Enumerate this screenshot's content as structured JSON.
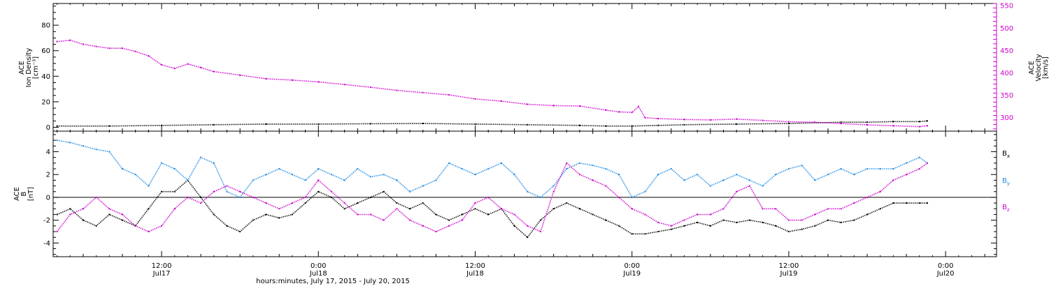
{
  "colors": {
    "black": "#000000",
    "magenta": "#cc00cc",
    "blue": "#1e8ce6",
    "axis": "#000000"
  },
  "xaxis": {
    "title": "hours:minutes, July 17, 2015 - July 20, 2015",
    "ticks": [
      {
        "time": "12:00",
        "date": "Jul17",
        "hours": 12
      },
      {
        "time": "0:00",
        "date": "Jul18",
        "hours": 24
      },
      {
        "time": "12:00",
        "date": "Jul18",
        "hours": 36
      },
      {
        "time": "0:00",
        "date": "Jul19",
        "hours": 48
      },
      {
        "time": "12:00",
        "date": "Jul19",
        "hours": 60
      },
      {
        "time": "0:00",
        "date": "Jul20",
        "hours": 72
      }
    ]
  },
  "chart_data": [
    {
      "type": "scatter",
      "panel": "plasma",
      "x_unit": "hours since 2015-07-17 00:00",
      "xlim": [
        3.7,
        75.9
      ],
      "left_axis": {
        "label_lines": [
          "ACE",
          "Ion Density",
          "[cm⁻³]"
        ],
        "ylim": [
          -3,
          97
        ],
        "ticks": [
          0,
          20,
          40,
          60,
          80
        ]
      },
      "right_axis": {
        "label_lines": [
          "ACE",
          "Velocity",
          "[km/s]"
        ],
        "ylim": [
          270,
          555
        ],
        "ticks": [
          300,
          350,
          400,
          450,
          500,
          550
        ]
      },
      "series": [
        {
          "axis": "left",
          "color": "#000000",
          "x": [
            4,
            8,
            12,
            16,
            20,
            24,
            28,
            32,
            36,
            40,
            44,
            46,
            48,
            50,
            52,
            56,
            60,
            64,
            66,
            68,
            70,
            70.6
          ],
          "values": [
            1,
            1,
            1.5,
            2,
            2.5,
            2.5,
            2.8,
            3,
            2.5,
            2,
            1.5,
            1,
            1,
            1.5,
            2,
            2.5,
            3,
            4,
            4,
            4.5,
            4.5,
            5
          ]
        },
        {
          "axis": "right",
          "color": "#cc00cc",
          "x": [
            4,
            5,
            6,
            7,
            8,
            9,
            10,
            11,
            12,
            13,
            14,
            15,
            16,
            18,
            20,
            22,
            24,
            26,
            28,
            30,
            32,
            34,
            36,
            38,
            40,
            42,
            44,
            46,
            47,
            48,
            48.5,
            49,
            50,
            52,
            54,
            56,
            58,
            60,
            62,
            64,
            66,
            68,
            70,
            70.6
          ],
          "values": [
            470,
            473,
            464,
            459,
            455,
            455,
            448,
            438,
            418,
            410,
            420,
            412,
            403,
            395,
            387,
            384,
            380,
            374,
            368,
            361,
            356,
            351,
            342,
            337,
            330,
            327,
            326,
            317,
            313,
            312,
            325,
            300,
            298,
            296,
            295,
            297,
            294,
            291,
            290,
            287,
            284,
            282,
            280,
            282
          ]
        }
      ]
    },
    {
      "type": "scatter",
      "panel": "magnetic-field",
      "x_unit": "hours since 2015-07-17 00:00",
      "xlim": [
        3.7,
        75.9
      ],
      "ylabel_lines": [
        "ACE",
        "B",
        "[nT]"
      ],
      "ylim": [
        -5.2,
        5.8
      ],
      "ticks": [
        -4,
        -2,
        0,
        2,
        4
      ],
      "zero_line": true,
      "legend": [
        "Bx",
        "By",
        "Bz"
      ],
      "series": [
        {
          "name": "Bx",
          "color": "#000000",
          "x": [
            4,
            5,
            6,
            7,
            8,
            9,
            10,
            11,
            12,
            13,
            14,
            15,
            16,
            17,
            18,
            19,
            20,
            21,
            22,
            23,
            24,
            25,
            26,
            27,
            28,
            29,
            30,
            31,
            32,
            33,
            34,
            35,
            36,
            37,
            38,
            39,
            40,
            41,
            42,
            43,
            44,
            45,
            46,
            47,
            48,
            49,
            50,
            51,
            52,
            53,
            54,
            55,
            56,
            57,
            58,
            59,
            60,
            61,
            62,
            63,
            64,
            65,
            66,
            67,
            68,
            69,
            70,
            70.6
          ],
          "values": [
            -1.5,
            -1,
            -2,
            -2.5,
            -1.5,
            -2,
            -2.5,
            -1,
            0.5,
            0.5,
            1.5,
            0,
            -1.5,
            -2.5,
            -3,
            -2,
            -1.5,
            -1.8,
            -1.5,
            -0.5,
            0.5,
            0,
            -1,
            -0.5,
            0,
            0.5,
            -0.5,
            -1,
            -0.5,
            -1.5,
            -2,
            -1.5,
            -1,
            -1.5,
            -1,
            -2.5,
            -3.5,
            -2,
            -1,
            -0.5,
            -1,
            -1.5,
            -2,
            -2.5,
            -3.2,
            -3.2,
            -3,
            -2.8,
            -2.5,
            -2.2,
            -2.5,
            -2,
            -2.2,
            -2,
            -2.2,
            -2.5,
            -3,
            -2.8,
            -2.5,
            -2,
            -2.2,
            -2,
            -1.5,
            -1,
            -0.5,
            -0.5,
            -0.5,
            -0.5
          ]
        },
        {
          "name": "By",
          "color": "#1e8ce6",
          "x": [
            4,
            5,
            6,
            7,
            8,
            9,
            10,
            11,
            12,
            13,
            14,
            15,
            16,
            17,
            18,
            19,
            20,
            21,
            22,
            23,
            24,
            25,
            26,
            27,
            28,
            29,
            30,
            31,
            32,
            33,
            34,
            35,
            36,
            37,
            38,
            39,
            40,
            41,
            42,
            43,
            44,
            45,
            46,
            47,
            48,
            49,
            50,
            51,
            52,
            53,
            54,
            55,
            56,
            57,
            58,
            59,
            60,
            61,
            62,
            63,
            64,
            65,
            66,
            67,
            68,
            69,
            70,
            70.6
          ],
          "values": [
            5,
            4.8,
            4.5,
            4.2,
            4,
            2.5,
            2,
            1,
            3,
            2.5,
            1.5,
            3.5,
            3,
            0.5,
            0,
            1.5,
            2,
            2.5,
            2,
            1.5,
            2.5,
            2,
            1.5,
            2.5,
            1.8,
            2,
            1.5,
            0.5,
            1,
            1.5,
            3,
            2.5,
            2,
            2.5,
            3,
            2,
            0.5,
            0,
            1,
            2.5,
            3,
            2.8,
            2.5,
            2,
            0,
            0.5,
            2,
            2.5,
            1.5,
            2,
            1,
            1.5,
            2,
            1.5,
            1,
            2,
            2.5,
            2.8,
            1.5,
            2,
            2.5,
            2,
            2.5,
            2.5,
            2.5,
            3,
            3.5,
            3
          ]
        },
        {
          "name": "Bz",
          "color": "#cc00cc",
          "x": [
            4,
            5,
            6,
            7,
            8,
            9,
            10,
            11,
            12,
            13,
            14,
            15,
            16,
            17,
            18,
            19,
            20,
            21,
            22,
            23,
            24,
            25,
            26,
            27,
            28,
            29,
            30,
            31,
            32,
            33,
            34,
            35,
            36,
            37,
            38,
            39,
            40,
            41,
            42,
            43,
            44,
            45,
            46,
            47,
            48,
            49,
            50,
            51,
            52,
            53,
            54,
            55,
            56,
            57,
            58,
            59,
            60,
            61,
            62,
            63,
            64,
            65,
            66,
            67,
            68,
            69,
            70,
            70.6
          ],
          "values": [
            -3,
            -1.5,
            -1,
            0,
            -1,
            -1.5,
            -2.5,
            -3,
            -2.5,
            -1,
            0,
            -0.5,
            0.5,
            1,
            0.5,
            0,
            -0.5,
            -1,
            -0.5,
            0,
            1.5,
            0.5,
            -0.5,
            -1.5,
            -1.5,
            -2,
            -1,
            -2,
            -2.5,
            -3,
            -2.5,
            -2,
            -0.5,
            0,
            -1,
            -1.5,
            -2.5,
            -3,
            0.5,
            3,
            2,
            1.5,
            1,
            0,
            -1,
            -1.5,
            -2.2,
            -2.5,
            -2,
            -1.5,
            -1.5,
            -1,
            0.5,
            1,
            -1,
            -1,
            -2,
            -2,
            -1.5,
            -1,
            -1,
            -0.5,
            0,
            0.5,
            1.5,
            2,
            2.5,
            3
          ]
        }
      ]
    }
  ]
}
